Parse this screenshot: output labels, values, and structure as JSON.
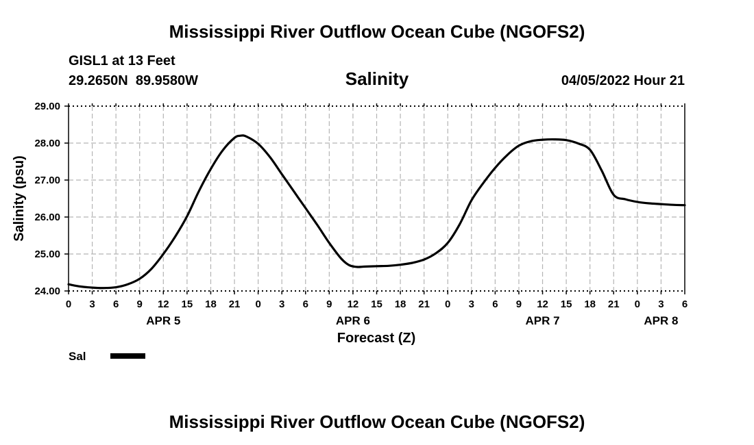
{
  "page": {
    "top_title": "Mississippi River Outflow Ocean Cube (NGOFS2)",
    "bottom_title": "Mississippi River Outflow Ocean Cube (NGOFS2)",
    "station_line": "GISL1 at 13 Feet",
    "coords_line": "29.2650N  89.9580W",
    "timestamp": "04/05/2022 Hour 21"
  },
  "colors": {
    "line": "#000000",
    "grid": "#b4b4b4",
    "background": "#ffffff"
  },
  "chart_data": {
    "type": "line",
    "title": "Salinity",
    "xlabel": "Forecast (Z)",
    "ylabel": "Salinity (psu)",
    "ylim": [
      24,
      29
    ],
    "xlim": [
      0,
      78
    ],
    "grid": true,
    "y_ticks": [
      "24.00",
      "25.00",
      "26.00",
      "27.00",
      "28.00",
      "29.00"
    ],
    "x_ticks": [
      {
        "x": 0,
        "label": "0"
      },
      {
        "x": 3,
        "label": "3"
      },
      {
        "x": 6,
        "label": "6"
      },
      {
        "x": 9,
        "label": "9"
      },
      {
        "x": 12,
        "label": "12"
      },
      {
        "x": 15,
        "label": "15"
      },
      {
        "x": 18,
        "label": "18"
      },
      {
        "x": 21,
        "label": "21"
      },
      {
        "x": 24,
        "label": "0"
      },
      {
        "x": 27,
        "label": "3"
      },
      {
        "x": 30,
        "label": "6"
      },
      {
        "x": 33,
        "label": "9"
      },
      {
        "x": 36,
        "label": "12"
      },
      {
        "x": 39,
        "label": "15"
      },
      {
        "x": 42,
        "label": "18"
      },
      {
        "x": 45,
        "label": "21"
      },
      {
        "x": 48,
        "label": "0"
      },
      {
        "x": 51,
        "label": "3"
      },
      {
        "x": 54,
        "label": "6"
      },
      {
        "x": 57,
        "label": "9"
      },
      {
        "x": 60,
        "label": "12"
      },
      {
        "x": 63,
        "label": "15"
      },
      {
        "x": 66,
        "label": "18"
      },
      {
        "x": 69,
        "label": "21"
      },
      {
        "x": 72,
        "label": "0"
      },
      {
        "x": 75,
        "label": "3"
      },
      {
        "x": 78,
        "label": "6"
      }
    ],
    "day_labels": [
      {
        "x": 12,
        "label": "APR 5"
      },
      {
        "x": 36,
        "label": "APR 6"
      },
      {
        "x": 60,
        "label": "APR 7"
      },
      {
        "x": 75,
        "label": "APR 8"
      }
    ],
    "legend": [
      {
        "name": "Sal"
      }
    ],
    "series": [
      {
        "name": "Sal",
        "x": [
          0,
          1.5,
          3,
          4.5,
          6,
          7.5,
          9,
          10.5,
          12,
          13.5,
          15,
          16.5,
          18,
          19.5,
          21,
          21.75,
          22.5,
          24,
          25.5,
          27,
          28.5,
          30,
          31.5,
          33,
          34.5,
          35.5,
          36.5,
          37.5,
          39,
          40.5,
          42,
          43.5,
          45,
          46.5,
          48,
          49.5,
          51,
          52.5,
          54,
          55.5,
          57,
          58.5,
          60,
          61.5,
          63,
          64.5,
          66,
          67.5,
          69,
          70.5,
          72,
          73.5,
          75,
          76.5,
          78
        ],
        "values": [
          24.18,
          24.12,
          24.09,
          24.08,
          24.1,
          24.18,
          24.33,
          24.6,
          25.0,
          25.47,
          26.02,
          26.7,
          27.3,
          27.8,
          28.14,
          28.2,
          28.18,
          27.98,
          27.62,
          27.16,
          26.7,
          26.24,
          25.78,
          25.3,
          24.88,
          24.7,
          24.65,
          24.66,
          24.67,
          24.68,
          24.71,
          24.76,
          24.85,
          25.02,
          25.3,
          25.8,
          26.45,
          26.92,
          27.33,
          27.67,
          27.93,
          28.05,
          28.09,
          28.1,
          28.08,
          27.99,
          27.82,
          27.25,
          26.6,
          26.48,
          26.41,
          26.37,
          26.35,
          26.33,
          26.32
        ]
      }
    ]
  }
}
